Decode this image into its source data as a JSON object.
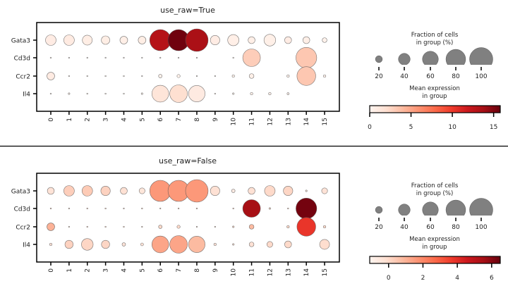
{
  "chart_data": [
    {
      "type": "scatter",
      "subtype": "dotplot",
      "title": "use_raw=True",
      "genes": [
        "Gata3",
        "Cd3d",
        "Ccr2",
        "Il4"
      ],
      "groups": [
        "0",
        "1",
        "2",
        "3",
        "4",
        "5",
        "6",
        "7",
        "8",
        "9",
        "10",
        "11",
        "12",
        "13",
        "14",
        "15"
      ],
      "fraction_pct": [
        [
          35,
          35,
          32,
          26,
          23,
          23,
          88,
          88,
          96,
          30,
          38,
          20,
          40,
          20,
          20,
          12
        ],
        [
          2,
          1,
          1,
          1,
          1,
          1,
          1,
          1,
          1,
          0,
          2,
          69,
          0,
          0,
          86,
          0
        ],
        [
          23,
          2,
          2,
          2,
          2,
          1,
          8,
          7,
          1,
          1,
          5,
          12,
          0,
          5,
          75,
          5
        ],
        [
          2,
          3,
          2,
          2,
          2,
          3,
          65,
          69,
          63,
          2,
          3,
          5,
          5,
          4,
          0,
          0
        ]
      ],
      "mean_expression": [
        [
          0.8,
          0.9,
          0.7,
          0.7,
          0.6,
          0.7,
          13,
          15.5,
          13.5,
          0.8,
          0.6,
          0.6,
          0.5,
          0.8,
          0.6,
          0.3
        ],
        [
          0.3,
          0.2,
          0.2,
          0.2,
          0.2,
          0.2,
          0.2,
          0.2,
          0.2,
          0,
          0.3,
          3,
          0,
          0,
          3.3,
          0
        ],
        [
          0.9,
          0.3,
          0.3,
          0.3,
          0.3,
          0.2,
          0.3,
          0.3,
          0.2,
          0.2,
          0.3,
          0.5,
          0,
          0.3,
          3.3,
          0.3
        ],
        [
          0.3,
          0.3,
          0.3,
          0.3,
          0.3,
          0.3,
          1.5,
          2,
          1,
          0.3,
          0.3,
          0.3,
          0.3,
          0.3,
          0,
          0
        ]
      ],
      "size_legend": {
        "title_line1": "Fraction of cells",
        "title_line2": "in group (%)",
        "ticks": [
          20,
          40,
          60,
          80,
          100
        ]
      },
      "color_legend": {
        "title_line1": "Mean expression",
        "title_line2": "in group",
        "range": [
          0,
          15.8
        ],
        "ticks": [
          0,
          5,
          10,
          15
        ],
        "colormap": "Reds"
      }
    },
    {
      "type": "scatter",
      "subtype": "dotplot",
      "title": "use_raw=False",
      "genes": [
        "Gata3",
        "Cd3d",
        "Ccr2",
        "Il4"
      ],
      "groups": [
        "0",
        "1",
        "2",
        "3",
        "4",
        "5",
        "6",
        "7",
        "8",
        "9",
        "10",
        "11",
        "12",
        "13",
        "14",
        "15"
      ],
      "fraction_pct": [
        [
          20,
          35,
          35,
          30,
          20,
          16,
          88,
          88,
          96,
          30,
          8,
          20,
          35,
          30,
          3,
          16
        ],
        [
          2,
          1,
          2,
          2,
          1,
          2,
          1,
          2,
          2,
          0,
          2,
          69,
          3,
          2,
          86,
          0
        ],
        [
          23,
          1,
          2,
          2,
          2,
          1,
          8,
          7,
          1,
          1,
          3,
          12,
          0,
          5,
          75,
          5
        ],
        [
          5,
          25,
          40,
          25,
          8,
          6,
          65,
          69,
          63,
          5,
          3,
          12,
          16,
          20,
          0,
          32
        ]
      ],
      "mean_expression": [
        [
          -0.3,
          0.3,
          0.4,
          0.2,
          -0.2,
          -0.4,
          1.6,
          1.6,
          1.6,
          -0.2,
          -0.7,
          -0.2,
          0,
          0.1,
          -0.5,
          -0.3
        ],
        [
          0,
          0,
          0,
          0,
          0,
          0,
          0,
          0,
          0,
          0,
          0,
          5.5,
          0,
          0,
          6.3,
          0
        ],
        [
          1,
          0,
          0,
          0,
          0,
          0,
          0,
          0,
          0,
          0,
          0,
          0.8,
          0,
          0,
          3.8,
          0
        ],
        [
          -0.3,
          0.2,
          0.1,
          0.1,
          -0.3,
          -0.3,
          1.3,
          1.3,
          0.8,
          -0.3,
          -0.3,
          -0.2,
          0,
          0,
          0,
          -0.1
        ]
      ],
      "size_legend": {
        "title_line1": "Fraction of cells",
        "title_line2": "in group (%)",
        "ticks": [
          20,
          40,
          60,
          80,
          100
        ]
      },
      "color_legend": {
        "title_line1": "Mean expression",
        "title_line2": "in group",
        "range": [
          -1.1,
          6.5
        ],
        "ticks": [
          0,
          2,
          4,
          6
        ],
        "colormap": "Reds"
      }
    }
  ],
  "colors": {
    "legend_dot": "#808080",
    "dot_edge": "#555555",
    "axis": "#000000"
  }
}
